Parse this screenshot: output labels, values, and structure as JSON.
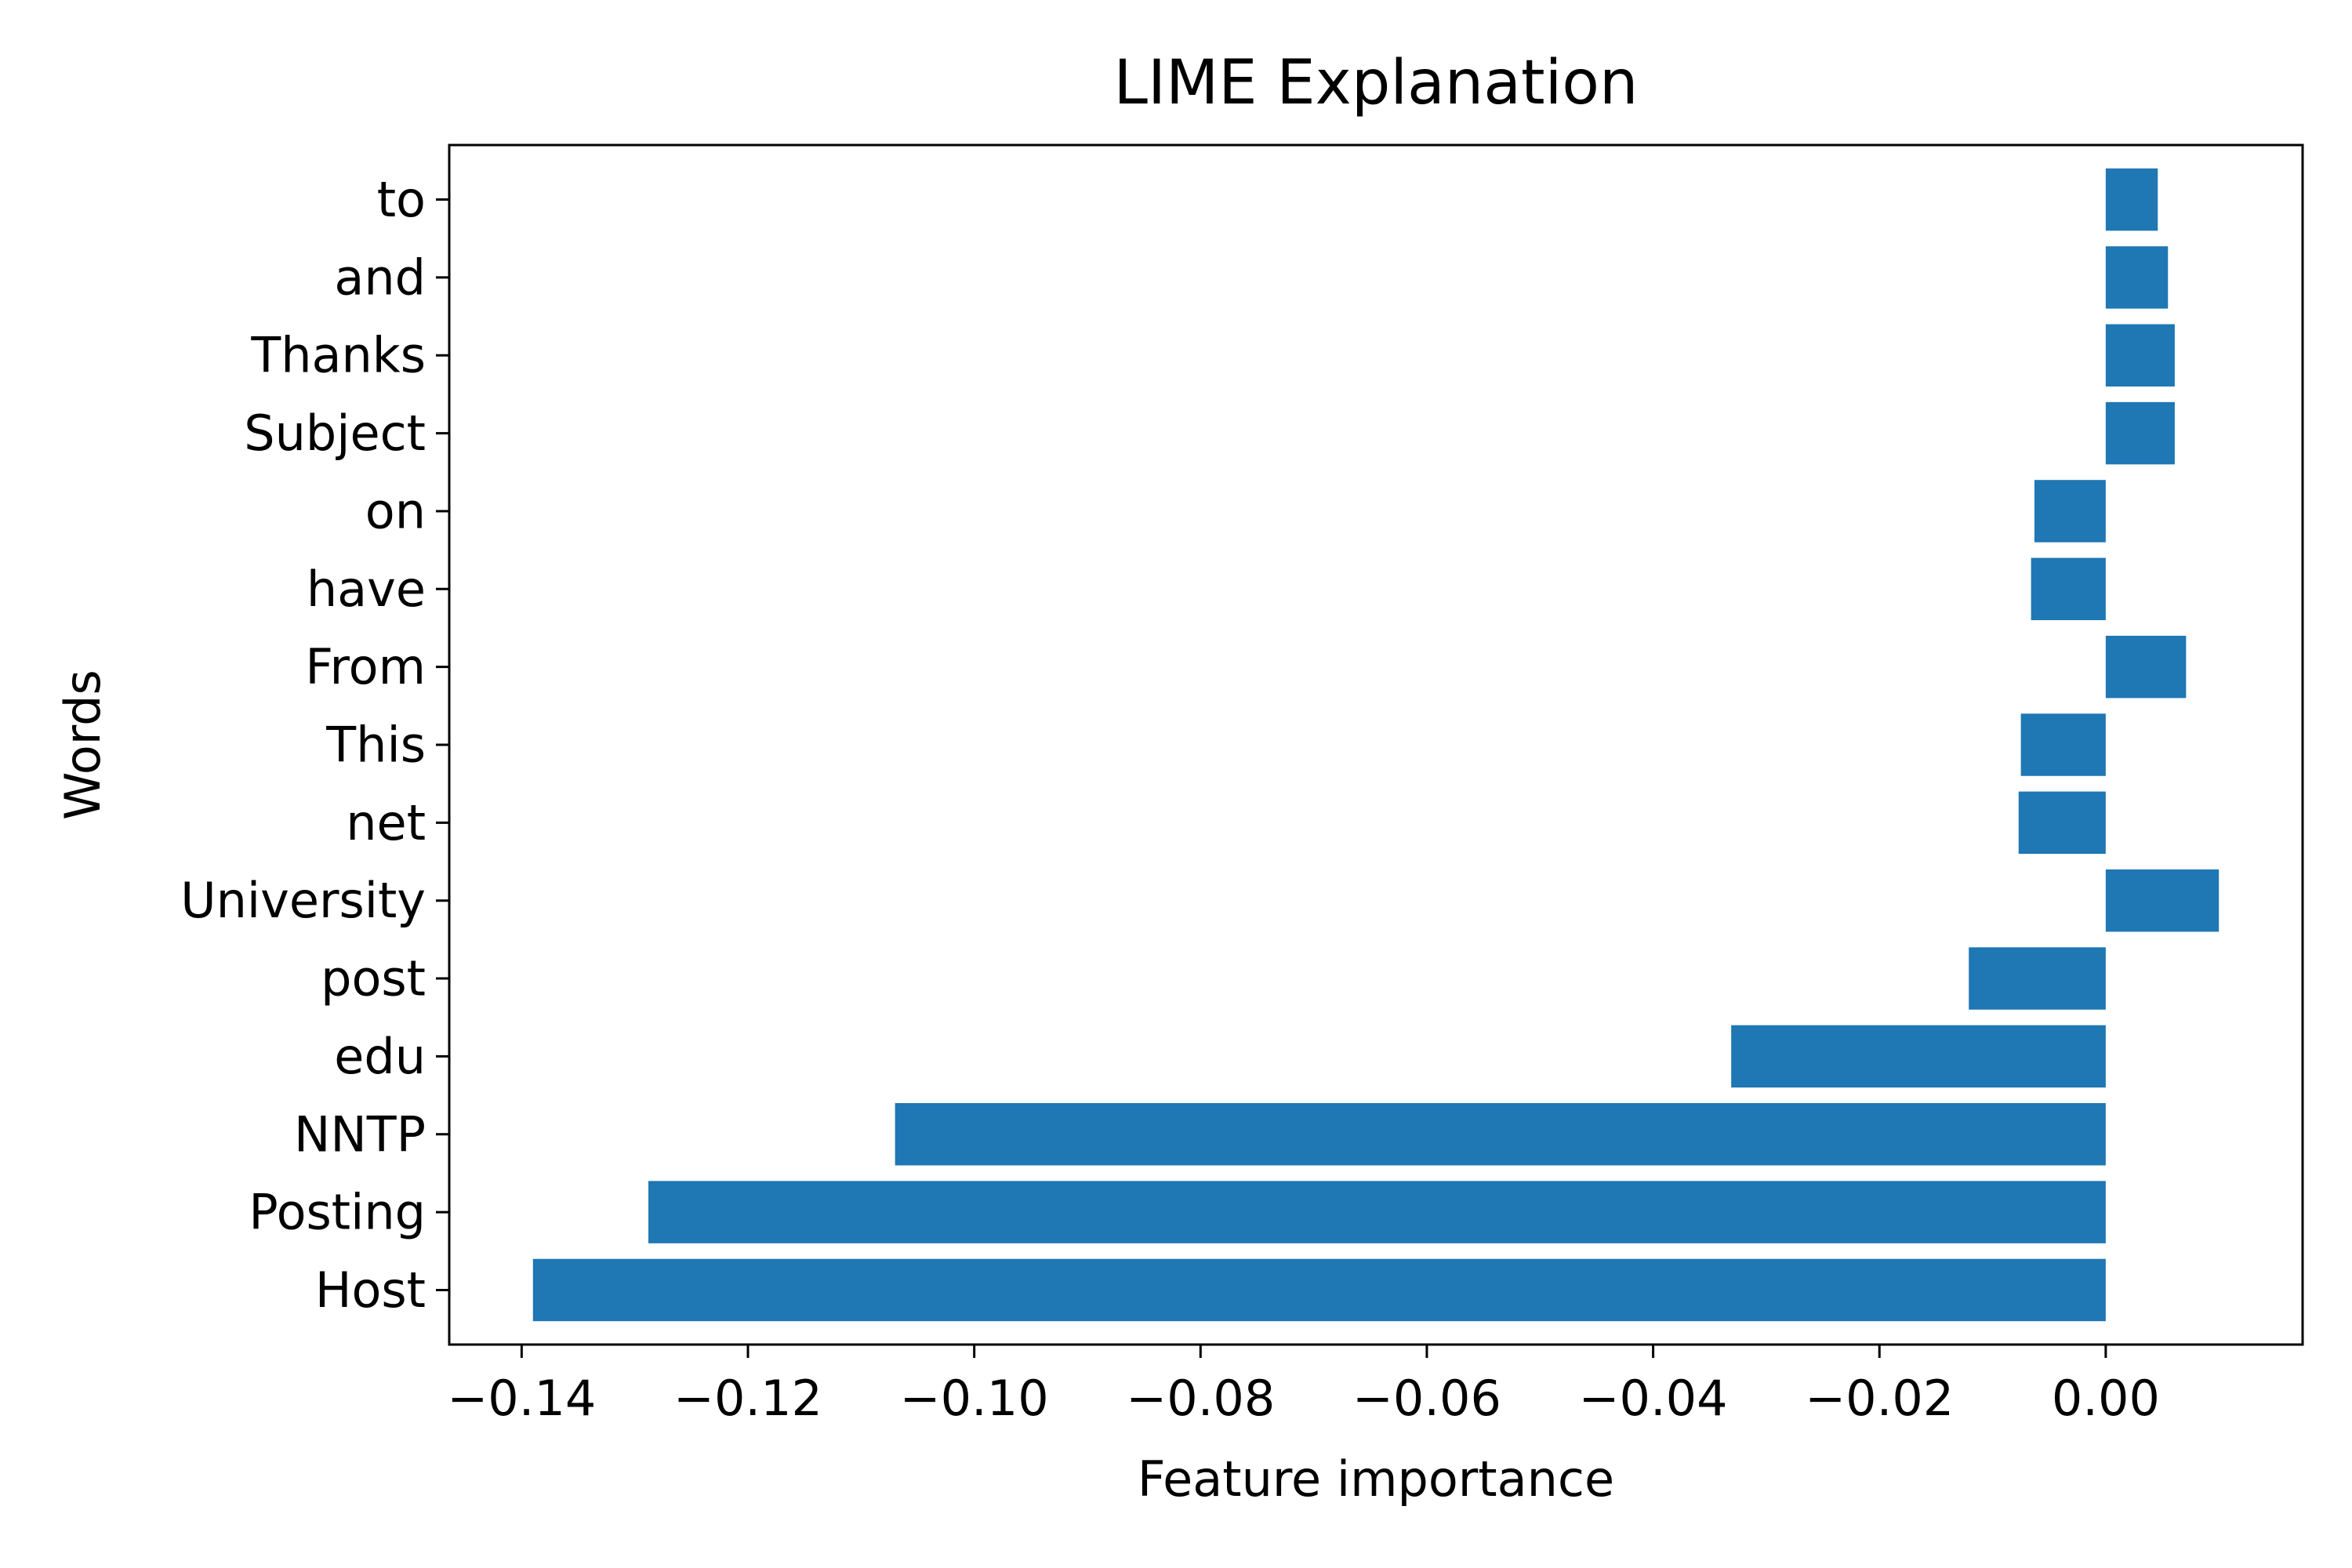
{
  "chart_data": {
    "type": "bar",
    "orientation": "horizontal",
    "title": "LIME Explanation",
    "xlabel": "Feature importance",
    "ylabel": "Words",
    "categories": [
      "Host",
      "Posting",
      "NNTP",
      "edu",
      "post",
      "University",
      "net",
      "This",
      "From",
      "have",
      "on",
      "Subject",
      "Thanks",
      "and",
      "to"
    ],
    "values": [
      -0.139,
      -0.1288,
      -0.107,
      -0.0331,
      -0.0121,
      0.01,
      -0.0077,
      -0.0075,
      0.0071,
      -0.0066,
      -0.0063,
      0.0061,
      0.0061,
      0.0055,
      0.0046
    ],
    "xticks": [
      -0.14,
      -0.12,
      -0.1,
      -0.08,
      -0.06,
      -0.04,
      -0.02,
      0.0
    ],
    "xtick_labels": [
      "−0.14",
      "−0.12",
      "−0.10",
      "−0.08",
      "−0.06",
      "−0.04",
      "−0.02",
      "0.00"
    ],
    "xlim": [
      -0.1464,
      0.0174
    ],
    "ylim": [
      -0.7,
      14.7
    ],
    "grid": false,
    "bar_color": "#1f77b4"
  }
}
